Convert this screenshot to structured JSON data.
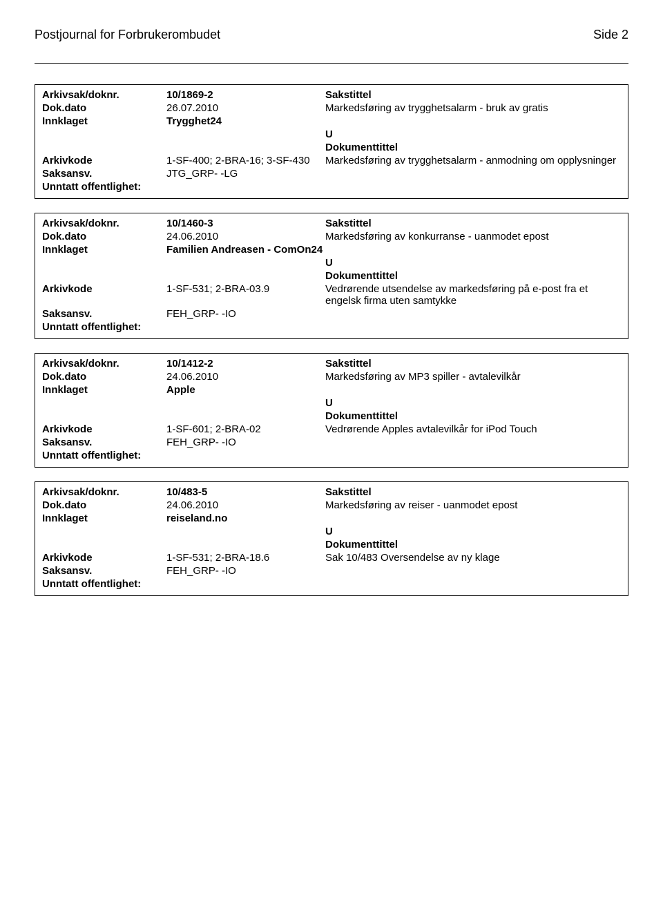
{
  "header": {
    "title": "Postjournal for Forbrukerombudet",
    "page_number": "Side 2"
  },
  "labels": {
    "arkivsak": "Arkivsak/doknr.",
    "dokdato": "Dok.dato",
    "innklaget": "Innklaget",
    "arkivkode": "Arkivkode",
    "saksansv": "Saksansv.",
    "unntatt": "Unntatt offentlighet:",
    "sakstittel": "Sakstittel",
    "dokumenttittel": "Dokumenttittel"
  },
  "records": [
    {
      "arkivsak": "10/1869-2",
      "dokdato": "26.07.2010",
      "innklaget": "Trygghet24",
      "arkivkode": "1-SF-400; 2-BRA-16; 3-SF-430",
      "saksansv": "JTG_GRP- -LG",
      "sakstittel": "Markedsføring av trygghetsalarm - bruk av gratis",
      "u": "U",
      "dokumenttittel": "Markedsføring av trygghetsalarm - anmodning om opplysninger"
    },
    {
      "arkivsak": "10/1460-3",
      "dokdato": "24.06.2010",
      "innklaget": "Familien Andreasen - ComOn24",
      "arkivkode": "1-SF-531; 2-BRA-03.9",
      "saksansv": "FEH_GRP- -IO",
      "sakstittel": "Markedsføring av konkurranse - uanmodet epost",
      "u": "U",
      "dokumenttittel": "Vedrørende utsendelse av markedsføring på e-post fra et engelsk firma uten samtykke"
    },
    {
      "arkivsak": "10/1412-2",
      "dokdato": "24.06.2010",
      "innklaget": "Apple",
      "arkivkode": "1-SF-601; 2-BRA-02",
      "saksansv": "FEH_GRP- -IO",
      "sakstittel": "Markedsføring av MP3 spiller - avtalevilkår",
      "u": "U",
      "dokumenttittel": "Vedrørende Apples avtalevilkår for iPod Touch"
    },
    {
      "arkivsak": "10/483-5",
      "dokdato": "24.06.2010",
      "innklaget": "reiseland.no",
      "arkivkode": "1-SF-531; 2-BRA-18.6",
      "saksansv": "FEH_GRP- -IO",
      "sakstittel": "Markedsføring av reiser - uanmodet epost",
      "u": "U",
      "dokumenttittel": "Sak 10/483 Oversendelse av ny klage"
    }
  ]
}
